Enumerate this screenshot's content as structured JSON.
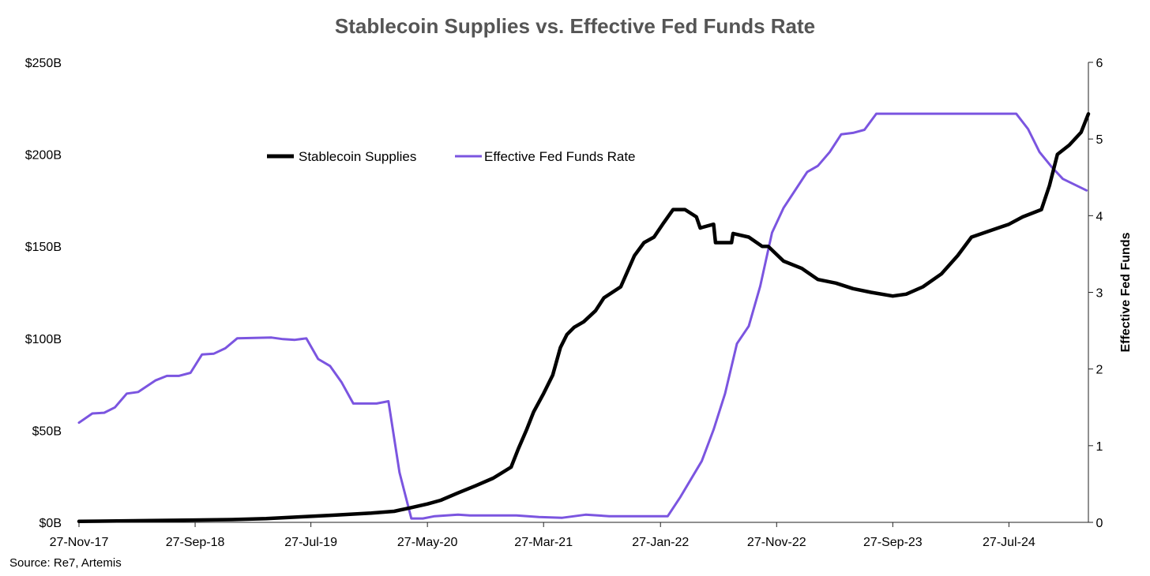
{
  "chart_data": {
    "type": "line",
    "title": "Stablecoin Supplies vs. Effective Fed Funds Rate",
    "source": "Source: Re7,  Artemis",
    "x_tick_labels": [
      "27-Nov-17",
      "27-Sep-18",
      "27-Jul-19",
      "27-May-20",
      "27-Mar-21",
      "27-Jan-22",
      "27-Nov-22",
      "27-Sep-23",
      "27-Jul-24"
    ],
    "x_range": [
      "2017-11-27",
      "2025-02-20"
    ],
    "y_left": {
      "label": "",
      "ticks": [
        "$0B",
        "$50B",
        "$100B",
        "$150B",
        "$200B",
        "$250B"
      ],
      "range": [
        0,
        250
      ]
    },
    "y_right": {
      "label": "Effective Fed Funds",
      "ticks": [
        "0",
        "1",
        "2",
        "3",
        "4",
        "5",
        "6"
      ],
      "range": [
        0,
        6
      ]
    },
    "legend": {
      "placement": "top-center",
      "entries": [
        "Stablecoin Supplies",
        "Effective Fed Funds Rate"
      ]
    },
    "colors": {
      "stablecoin": "#000000",
      "fed_funds": "#7B55E0"
    },
    "series": [
      {
        "name": "Stablecoin Supplies",
        "axis": "left",
        "points": [
          [
            "2017-11-27",
            0.5
          ],
          [
            "2018-06-01",
            1
          ],
          [
            "2019-01-01",
            1.5
          ],
          [
            "2019-04-01",
            2
          ],
          [
            "2019-07-01",
            3
          ],
          [
            "2019-10-01",
            4
          ],
          [
            "2020-01-01",
            5
          ],
          [
            "2020-03-01",
            6
          ],
          [
            "2020-04-15",
            8
          ],
          [
            "2020-05-27",
            10
          ],
          [
            "2020-07-01",
            12
          ],
          [
            "2020-08-15",
            16
          ],
          [
            "2020-10-01",
            20
          ],
          [
            "2020-11-15",
            24
          ],
          [
            "2021-01-01",
            30
          ],
          [
            "2021-01-20",
            40
          ],
          [
            "2021-02-10",
            50
          ],
          [
            "2021-03-01",
            60
          ],
          [
            "2021-03-27",
            70
          ],
          [
            "2021-04-20",
            80
          ],
          [
            "2021-05-10",
            95
          ],
          [
            "2021-05-27",
            102
          ],
          [
            "2021-06-15",
            106
          ],
          [
            "2021-07-10",
            109
          ],
          [
            "2021-08-10",
            115
          ],
          [
            "2021-09-01",
            122
          ],
          [
            "2021-10-15",
            128
          ],
          [
            "2021-11-20",
            145
          ],
          [
            "2021-12-15",
            152
          ],
          [
            "2022-01-10",
            155
          ],
          [
            "2022-02-05",
            163
          ],
          [
            "2022-03-01",
            170
          ],
          [
            "2022-04-01",
            170
          ],
          [
            "2022-05-01",
            166
          ],
          [
            "2022-05-11",
            160
          ],
          [
            "2022-06-15",
            162
          ],
          [
            "2022-06-20",
            152
          ],
          [
            "2022-08-01",
            152
          ],
          [
            "2022-08-05",
            157
          ],
          [
            "2022-09-15",
            155
          ],
          [
            "2022-10-20",
            150
          ],
          [
            "2022-11-05",
            150
          ],
          [
            "2022-12-15",
            142
          ],
          [
            "2023-02-01",
            138
          ],
          [
            "2023-03-15",
            132
          ],
          [
            "2023-05-01",
            130
          ],
          [
            "2023-06-15",
            127
          ],
          [
            "2023-08-01",
            125
          ],
          [
            "2023-09-27",
            123
          ],
          [
            "2023-11-01",
            124
          ],
          [
            "2023-12-15",
            128
          ],
          [
            "2024-02-01",
            135
          ],
          [
            "2024-03-15",
            145
          ],
          [
            "2024-04-20",
            155
          ],
          [
            "2024-06-01",
            158
          ],
          [
            "2024-07-27",
            162
          ],
          [
            "2024-09-01",
            166
          ],
          [
            "2024-10-20",
            170
          ],
          [
            "2024-11-10",
            183
          ],
          [
            "2024-12-01",
            200
          ],
          [
            "2025-01-01",
            205
          ],
          [
            "2025-02-01",
            212
          ],
          [
            "2025-02-20",
            222
          ]
        ]
      },
      {
        "name": "Effective Fed Funds Rate",
        "axis": "right",
        "points": [
          [
            "2017-11-27",
            1.3
          ],
          [
            "2018-01-01",
            1.42
          ],
          [
            "2018-02-01",
            1.43
          ],
          [
            "2018-03-01",
            1.5
          ],
          [
            "2018-04-01",
            1.68
          ],
          [
            "2018-05-01",
            1.7
          ],
          [
            "2018-06-15",
            1.85
          ],
          [
            "2018-07-15",
            1.91
          ],
          [
            "2018-08-15",
            1.91
          ],
          [
            "2018-09-15",
            1.95
          ],
          [
            "2018-10-15",
            2.19
          ],
          [
            "2018-11-15",
            2.2
          ],
          [
            "2018-12-15",
            2.27
          ],
          [
            "2019-01-15",
            2.4
          ],
          [
            "2019-04-15",
            2.41
          ],
          [
            "2019-05-15",
            2.39
          ],
          [
            "2019-06-15",
            2.38
          ],
          [
            "2019-07-15",
            2.4
          ],
          [
            "2019-08-15",
            2.13
          ],
          [
            "2019-09-15",
            2.04
          ],
          [
            "2019-10-15",
            1.83
          ],
          [
            "2019-11-15",
            1.55
          ],
          [
            "2020-01-15",
            1.55
          ],
          [
            "2020-02-15",
            1.58
          ],
          [
            "2020-03-15",
            0.65
          ],
          [
            "2020-04-15",
            0.05
          ],
          [
            "2020-05-15",
            0.05
          ],
          [
            "2020-06-15",
            0.08
          ],
          [
            "2020-08-15",
            0.1
          ],
          [
            "2020-09-15",
            0.09
          ],
          [
            "2021-01-15",
            0.09
          ],
          [
            "2021-03-15",
            0.07
          ],
          [
            "2021-05-15",
            0.06
          ],
          [
            "2021-07-15",
            0.1
          ],
          [
            "2021-09-15",
            0.08
          ],
          [
            "2022-02-15",
            0.08
          ],
          [
            "2022-03-20",
            0.33
          ],
          [
            "2022-05-15",
            0.8
          ],
          [
            "2022-06-15",
            1.21
          ],
          [
            "2022-07-15",
            1.68
          ],
          [
            "2022-08-15",
            2.33
          ],
          [
            "2022-09-15",
            2.56
          ],
          [
            "2022-10-15",
            3.08
          ],
          [
            "2022-11-15",
            3.78
          ],
          [
            "2022-12-15",
            4.1
          ],
          [
            "2023-02-15",
            4.57
          ],
          [
            "2023-03-15",
            4.65
          ],
          [
            "2023-04-15",
            4.83
          ],
          [
            "2023-05-15",
            5.06
          ],
          [
            "2023-06-15",
            5.08
          ],
          [
            "2023-07-15",
            5.12
          ],
          [
            "2023-08-15",
            5.33
          ],
          [
            "2024-08-15",
            5.33
          ],
          [
            "2024-09-15",
            5.13
          ],
          [
            "2024-10-15",
            4.83
          ],
          [
            "2024-11-15",
            4.64
          ],
          [
            "2024-12-15",
            4.48
          ],
          [
            "2025-02-15",
            4.33
          ]
        ]
      }
    ]
  }
}
